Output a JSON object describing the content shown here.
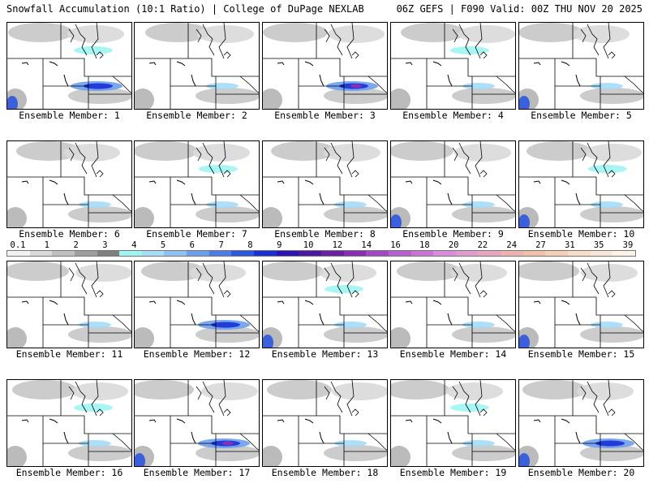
{
  "header": {
    "title_left": "Snowfall Accumulation (10:1 Ratio) | College of DuPage NEXLAB",
    "title_right": "06Z GEFS | F090 Valid: 00Z THU NOV 20 2025"
  },
  "legend": {
    "labels": [
      "0.1",
      "1",
      "2",
      "3",
      "4",
      "5",
      "6",
      "7",
      "8",
      "9",
      "10",
      "12",
      "14",
      "16",
      "18",
      "20",
      "22",
      "24",
      "27",
      "31",
      "35",
      "39"
    ],
    "colors": [
      "#f2f2f2",
      "#d9d9d9",
      "#bfbfbf",
      "#9e9e9e",
      "#7f7f7f",
      "#9ff5f2",
      "#a5dcf7",
      "#8ec1f2",
      "#6b9fee",
      "#4b7ce9",
      "#2c57e0",
      "#1a2fd6",
      "#2a14b8",
      "#4b16a5",
      "#6b1fa3",
      "#8a2fb5",
      "#a248c4",
      "#b75fcf",
      "#cb74d6",
      "#d98cd9",
      "#e09ccf",
      "#e6a6c0",
      "#eeb2b2",
      "#f2c0a6",
      "#f5d0b4",
      "#f8dcc6",
      "#fae6d6",
      "#fdf2e8"
    ]
  },
  "panels": [
    {
      "label": "Ensemble Member: 1"
    },
    {
      "label": "Ensemble Member: 2"
    },
    {
      "label": "Ensemble Member: 3"
    },
    {
      "label": "Ensemble Member: 4"
    },
    {
      "label": "Ensemble Member: 5"
    },
    {
      "label": "Ensemble Member: 6"
    },
    {
      "label": "Ensemble Member: 7"
    },
    {
      "label": "Ensemble Member: 8"
    },
    {
      "label": "Ensemble Member: 9"
    },
    {
      "label": "Ensemble Member: 10"
    },
    {
      "label": "Ensemble Member: 11"
    },
    {
      "label": "Ensemble Member: 12"
    },
    {
      "label": "Ensemble Member: 13"
    },
    {
      "label": "Ensemble Member: 14"
    },
    {
      "label": "Ensemble Member: 15"
    },
    {
      "label": "Ensemble Member: 16"
    },
    {
      "label": "Ensemble Member: 17"
    },
    {
      "label": "Ensemble Member: 18"
    },
    {
      "label": "Ensemble Member: 19"
    },
    {
      "label": "Ensemble Member: 20"
    }
  ]
}
